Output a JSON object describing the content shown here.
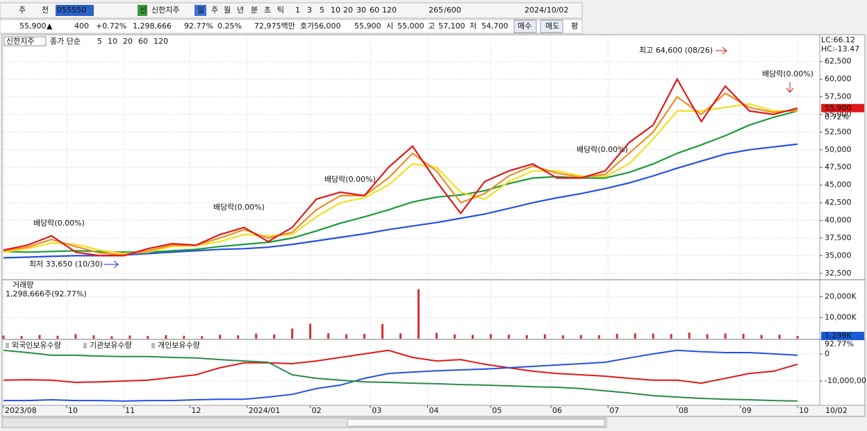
{
  "toolbar": {
    "items": [
      "주",
      "전",
      "055550",
      "신",
      "신한지주",
      "일",
      "주",
      "월",
      "년",
      "분",
      "초",
      "틱",
      "1",
      "3",
      "5",
      "10",
      "20",
      "30",
      "60",
      "120",
      "265",
      "/600",
      "2024/10/02"
    ]
  },
  "quote": {
    "items": [
      "55,900",
      "▲",
      "400",
      "+0.72%",
      "1,298,666",
      "92.77%",
      "0.25%",
      "72,975백만",
      "호가",
      "56,000",
      "55,900",
      "시",
      "55,000",
      "고",
      "57,100",
      "저",
      "54,700",
      "매수",
      "매도",
      "평"
    ]
  },
  "chart_data": [
    {
      "type": "line",
      "title": "신한지주",
      "subtitle": "종가 단순",
      "annotations": [
        "최고 64,600 (08/26)",
        "최저 33,650 (10/30)",
        "배당락(0.00%)",
        "배당락(0.00%)",
        "배당락(0.00%)",
        "배당락(0.00%)",
        "배당락(0.00%)"
      ],
      "right_labels": [
        "LC:66.12",
        "HC:-13.47"
      ],
      "price_label": {
        "value": 55900,
        "label": "55,900"
      },
      "change_label": "0.72%",
      "x": [
        0,
        8,
        16,
        24,
        32,
        40,
        48,
        56,
        64,
        72,
        80,
        88,
        96,
        104,
        112,
        120,
        128,
        136,
        144,
        152,
        160,
        168,
        176,
        184,
        192,
        200,
        208,
        216,
        224,
        232,
        240,
        248,
        256,
        264
      ],
      "xlim": [
        0,
        264
      ],
      "xticks": [
        {
          "value": 0,
          "label": "2023/08"
        },
        {
          "value": 21,
          "label": "10"
        },
        {
          "value": 40,
          "label": "11"
        },
        {
          "value": 62,
          "label": "12"
        },
        {
          "value": 81,
          "label": "2024/01"
        },
        {
          "value": 102,
          "label": "02"
        },
        {
          "value": 122,
          "label": "03"
        },
        {
          "value": 141,
          "label": "04"
        },
        {
          "value": 162,
          "label": "05"
        },
        {
          "value": 182,
          "label": "06"
        },
        {
          "value": 201,
          "label": "07"
        },
        {
          "value": 224,
          "label": "08"
        },
        {
          "value": 245,
          "label": "09"
        },
        {
          "value": 264,
          "label": "10"
        }
      ],
      "x_end_label": "10/02",
      "ylim": [
        31700,
        66100
      ],
      "yticks": [
        {
          "value": 32500,
          "label": "32,500"
        },
        {
          "value": 35000,
          "label": "35,000"
        },
        {
          "value": 37500,
          "label": "37,500"
        },
        {
          "value": 40000,
          "label": "40,000"
        },
        {
          "value": 42500,
          "label": "42,500"
        },
        {
          "value": 45000,
          "label": "45,000"
        },
        {
          "value": 47500,
          "label": "47,500"
        },
        {
          "value": 50000,
          "label": "50,000"
        },
        {
          "value": 52500,
          "label": "52,500"
        },
        {
          "value": 55000,
          "label": "55,000"
        },
        {
          "value": 57500,
          "label": "57,500"
        },
        {
          "value": 60000,
          "label": "60,000"
        },
        {
          "value": 62500,
          "label": "62,500"
        }
      ],
      "grid": true,
      "series": [
        {
          "name": "120",
          "color": "#2450e0",
          "values": [
            34700,
            34800,
            34900,
            35000,
            35000,
            35100,
            35300,
            35500,
            35700,
            35900,
            36000,
            36200,
            36600,
            37100,
            37600,
            38100,
            38700,
            39200,
            39700,
            40300,
            40900,
            41700,
            42500,
            43200,
            43800,
            44500,
            45300,
            46300,
            47400,
            48400,
            49400,
            50000,
            50400,
            50800
          ]
        },
        {
          "name": "60",
          "color": "#1a9a3a",
          "values": [
            35600,
            35500,
            35600,
            35700,
            35600,
            35500,
            35500,
            35700,
            35900,
            36300,
            36600,
            36900,
            37500,
            38500,
            39600,
            40500,
            41500,
            42600,
            43300,
            43600,
            44200,
            45200,
            46000,
            46200,
            46000,
            46000,
            46800,
            48000,
            49500,
            50700,
            52000,
            53500,
            54600,
            55500
          ]
        },
        {
          "name": "20",
          "color": "#f0e020",
          "values": [
            35500,
            36000,
            36800,
            36600,
            35800,
            35300,
            35500,
            36300,
            36400,
            37000,
            38000,
            37800,
            38000,
            40500,
            42500,
            43200,
            45000,
            48000,
            47500,
            44000,
            43000,
            45500,
            47000,
            47000,
            46300,
            46200,
            48000,
            51500,
            55500,
            55500,
            56000,
            56500,
            55500,
            55500
          ]
        },
        {
          "name": "10",
          "color": "#f08c20",
          "values": [
            35700,
            36200,
            37300,
            36300,
            35400,
            35100,
            35700,
            36500,
            36500,
            37500,
            38700,
            37500,
            38300,
            41500,
            43500,
            43500,
            46000,
            49500,
            47000,
            42500,
            43800,
            46300,
            47700,
            46700,
            46100,
            46500,
            49500,
            52500,
            57500,
            55000,
            58000,
            56000,
            55300,
            55600
          ]
        },
        {
          "name": "5",
          "color": "#e01818",
          "values": [
            35800,
            36500,
            37800,
            35500,
            35000,
            35000,
            36000,
            36700,
            36500,
            38000,
            39000,
            37000,
            39000,
            43000,
            44000,
            43500,
            47500,
            50500,
            45500,
            41000,
            45500,
            47000,
            48000,
            46000,
            46000,
            47000,
            51000,
            53500,
            60000,
            54000,
            59000,
            55500,
            55000,
            55900
          ]
        }
      ]
    },
    {
      "type": "bar",
      "title": "거래량",
      "subtitle": "1,298,666주(92.77%)",
      "color": "#d83030",
      "last_label": {
        "value": 1299000,
        "label": "1,299K"
      },
      "ratio_label": "92.77%",
      "x": [
        0,
        6,
        12,
        18,
        24,
        30,
        36,
        42,
        48,
        54,
        60,
        66,
        72,
        78,
        84,
        90,
        96,
        102,
        108,
        114,
        120,
        126,
        132,
        138,
        144,
        150,
        156,
        162,
        168,
        174,
        180,
        186,
        192,
        198,
        204,
        210,
        216,
        222,
        228,
        234,
        240,
        246,
        252,
        258,
        264
      ],
      "values": [
        1500000,
        1300000,
        1800000,
        1400000,
        2200000,
        1600000,
        1200000,
        1500000,
        1300000,
        1700000,
        1400000,
        1200000,
        1900000,
        1600000,
        2400000,
        2000000,
        4800000,
        7100000,
        2600000,
        2100000,
        2300000,
        7000000,
        2500000,
        23500000,
        2800000,
        2000000,
        1800000,
        2200000,
        1900000,
        1700000,
        2100000,
        1600000,
        1800000,
        1700000,
        2300000,
        2600000,
        2400000,
        2200000,
        2900000,
        2100000,
        2500000,
        2300000,
        1800000,
        1900000,
        1298666
      ],
      "ylim": [
        0,
        27700000
      ],
      "yticks": [
        {
          "value": 10000000,
          "label": "10,000K"
        },
        {
          "value": 20000000,
          "label": "20,000K"
        }
      ]
    },
    {
      "type": "line",
      "x": [
        0,
        8,
        16,
        24,
        32,
        40,
        48,
        56,
        64,
        72,
        80,
        88,
        96,
        104,
        112,
        120,
        128,
        136,
        144,
        152,
        160,
        168,
        176,
        184,
        192,
        200,
        208,
        216,
        224,
        232,
        240,
        248,
        256,
        264
      ],
      "ylim": [
        -18700000,
        5100000
      ],
      "yticks": [
        0,
        {
          "value": -10000000,
          "label": "-10,000,00"
        }
      ],
      "series": [
        {
          "name": "외국인보유수량",
          "color": "#e01818",
          "values": [
            -9700000,
            -9500000,
            -9700000,
            -10500000,
            -10300000,
            -10000000,
            -9700000,
            -8700000,
            -7700000,
            -5100000,
            -3300000,
            -3300000,
            -3600000,
            -2600000,
            -1300000,
            0,
            1300000,
            -1300000,
            -2600000,
            -2100000,
            -3800000,
            -5100000,
            -6400000,
            -7200000,
            -7700000,
            -8200000,
            -9000000,
            -9700000,
            -9700000,
            -10800000,
            -9000000,
            -7200000,
            -6400000,
            -3800000
          ]
        },
        {
          "name": "기관보유수량",
          "color": "#2450e0",
          "values": [
            -17200000,
            -17200000,
            -16900000,
            -17200000,
            -17200000,
            -17400000,
            -17200000,
            -17200000,
            -16900000,
            -16700000,
            -16700000,
            -15900000,
            -14900000,
            -12800000,
            -11500000,
            -9000000,
            -7200000,
            -6700000,
            -6200000,
            -5900000,
            -5600000,
            -5100000,
            -4600000,
            -4100000,
            -3600000,
            -3100000,
            -1500000,
            0,
            1300000,
            800000,
            500000,
            500000,
            0,
            -500000
          ]
        },
        {
          "name": "개인보유수량",
          "color": "#2a8a4a",
          "values": [
            1300000,
            500000,
            -500000,
            -500000,
            -800000,
            -1000000,
            -1000000,
            -1300000,
            -1500000,
            -2100000,
            -2600000,
            -3100000,
            -7700000,
            -9000000,
            -9700000,
            -10300000,
            -10500000,
            -10800000,
            -11000000,
            -11300000,
            -11500000,
            -11800000,
            -12100000,
            -12300000,
            -12800000,
            -13600000,
            -14400000,
            -15400000,
            -15900000,
            -16400000,
            -16700000,
            -16900000,
            -17200000,
            -17400000
          ]
        }
      ]
    }
  ]
}
